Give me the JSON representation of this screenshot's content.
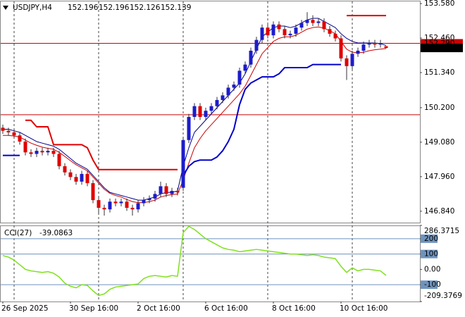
{
  "chart_data": {
    "type": "candlestick",
    "symbol": "USDJPY,H4",
    "up_color": "#1c1ccc",
    "down_color": "#e00000",
    "wick_color": "#333333",
    "grid": true,
    "categories": [
      "26 Sep 2025",
      null,
      null,
      null,
      null,
      null,
      null,
      null,
      null,
      null,
      null,
      null,
      "30 Sep 16:00",
      null,
      null,
      null,
      null,
      null,
      null,
      null,
      null,
      null,
      null,
      null,
      "2 Oct 16:00",
      null,
      null,
      null,
      null,
      null,
      null,
      null,
      null,
      null,
      null,
      null,
      "6 Oct 16:00",
      null,
      null,
      null,
      null,
      null,
      null,
      null,
      null,
      null,
      null,
      null,
      "8 Oct 16:00",
      null,
      null,
      null,
      null,
      null,
      null,
      null,
      null,
      null,
      null,
      null,
      "10 Oct 16:00",
      null,
      null,
      null,
      null,
      null,
      null,
      null,
      null
    ],
    "open": [
      149.55,
      149.45,
      149.4,
      149.3,
      149.1,
      148.75,
      148.7,
      148.8,
      148.75,
      148.8,
      148.7,
      148.3,
      148.1,
      147.95,
      147.8,
      148.05,
      147.75,
      147.2,
      146.95,
      146.9,
      147.15,
      147.1,
      147.15,
      146.95,
      146.9,
      147.1,
      147.2,
      147.25,
      147.4,
      147.65,
      147.4,
      147.5,
      147.6,
      149.15,
      149.9,
      150.25,
      149.9,
      150.1,
      150.25,
      150.45,
      150.6,
      150.85,
      150.95,
      151.4,
      151.6,
      152.05,
      152.4,
      152.8,
      152.55,
      152.9,
      152.75,
      152.55,
      152.6,
      152.8,
      152.95,
      153.05,
      152.95,
      153.0,
      152.75,
      152.6,
      152.45,
      151.8,
      151.55,
      151.95,
      152.05,
      152.25,
      152.3,
      152.25,
      152.196
    ],
    "high": [
      149.65,
      149.55,
      149.5,
      149.4,
      149.2,
      148.85,
      148.9,
      148.9,
      148.9,
      148.9,
      148.8,
      148.4,
      148.2,
      148.05,
      148.15,
      148.15,
      147.85,
      147.3,
      147.05,
      147.25,
      147.25,
      147.25,
      147.25,
      147.05,
      147.2,
      147.3,
      147.35,
      147.5,
      147.8,
      147.75,
      147.6,
      147.6,
      149.25,
      150.0,
      150.35,
      150.35,
      150.2,
      150.35,
      150.55,
      150.7,
      150.95,
      151.05,
      151.5,
      151.7,
      152.15,
      152.5,
      152.9,
      152.9,
      153.0,
      153.0,
      152.85,
      152.7,
      152.9,
      153.05,
      153.3,
      153.2,
      153.1,
      153.1,
      152.85,
      152.7,
      152.55,
      151.9,
      152.05,
      152.15,
      152.35,
      152.4,
      152.4,
      152.4,
      152.196
    ],
    "low": [
      149.35,
      149.3,
      149.2,
      149.0,
      148.65,
      148.6,
      148.6,
      148.65,
      148.65,
      148.6,
      148.2,
      148.0,
      147.85,
      147.7,
      147.7,
      147.65,
      147.1,
      146.75,
      146.7,
      146.8,
      147.0,
      147.0,
      146.85,
      146.7,
      146.8,
      147.0,
      147.1,
      147.15,
      147.3,
      147.3,
      147.3,
      147.35,
      147.5,
      149.05,
      149.8,
      149.8,
      149.8,
      150.0,
      150.15,
      150.35,
      150.5,
      150.75,
      150.85,
      151.3,
      151.5,
      151.95,
      152.3,
      152.45,
      152.45,
      152.65,
      152.45,
      152.45,
      152.5,
      152.7,
      152.85,
      152.85,
      152.85,
      152.65,
      152.5,
      152.35,
      151.7,
      151.1,
      151.45,
      151.85,
      151.95,
      152.15,
      152.15,
      152.15,
      152.126
    ],
    "close": [
      149.45,
      149.4,
      149.3,
      149.1,
      148.75,
      148.7,
      148.8,
      148.75,
      148.8,
      148.7,
      148.3,
      148.1,
      147.95,
      147.8,
      148.05,
      147.75,
      147.2,
      146.95,
      146.9,
      147.15,
      147.1,
      147.15,
      146.95,
      146.9,
      147.1,
      147.2,
      147.25,
      147.4,
      147.65,
      147.4,
      147.5,
      147.45,
      149.15,
      149.9,
      150.25,
      149.9,
      150.1,
      150.25,
      150.45,
      150.6,
      150.85,
      150.95,
      151.4,
      151.6,
      152.05,
      152.4,
      152.8,
      152.55,
      152.9,
      152.75,
      152.55,
      152.6,
      152.8,
      152.95,
      153.05,
      152.95,
      153.0,
      152.75,
      152.6,
      152.45,
      151.8,
      151.55,
      151.95,
      152.05,
      152.25,
      152.3,
      152.25,
      152.3,
      152.139
    ],
    "series": [
      {
        "color": "#00008b",
        "values": [
          149.5,
          149.5,
          149.45,
          149.4,
          149.3,
          149.2,
          149.1,
          149.05,
          149.0,
          148.95,
          148.85,
          148.7,
          148.55,
          148.4,
          148.3,
          148.2,
          148.0,
          147.8,
          147.6,
          147.45,
          147.4,
          147.35,
          147.3,
          147.25,
          147.2,
          147.2,
          147.25,
          147.3,
          147.4,
          147.45,
          147.45,
          147.5,
          148.3,
          148.9,
          149.4,
          149.6,
          149.8,
          150.0,
          150.2,
          150.4,
          150.6,
          150.8,
          151.0,
          151.3,
          151.7,
          152.1,
          152.5,
          152.65,
          152.8,
          152.85,
          152.85,
          152.8,
          152.85,
          152.95,
          153.05,
          153.1,
          153.1,
          153.0,
          152.9,
          152.8,
          152.6,
          152.45,
          152.35,
          152.3,
          152.3,
          152.3,
          152.3,
          152.28,
          152.22
        ]
      },
      {
        "color": "#cc0000",
        "values": [
          149.3,
          149.3,
          149.28,
          149.25,
          149.15,
          149.05,
          148.98,
          148.92,
          148.88,
          148.85,
          148.75,
          148.62,
          148.48,
          148.35,
          148.25,
          148.15,
          147.95,
          147.75,
          147.55,
          147.42,
          147.35,
          147.3,
          147.22,
          147.15,
          147.12,
          147.12,
          147.15,
          147.2,
          147.3,
          147.35,
          147.38,
          147.4,
          147.85,
          148.4,
          148.9,
          149.2,
          149.45,
          149.65,
          149.85,
          150.05,
          150.25,
          150.45,
          150.65,
          150.9,
          151.25,
          151.6,
          151.95,
          152.15,
          152.35,
          152.45,
          152.5,
          152.5,
          152.55,
          152.65,
          152.75,
          152.8,
          152.82,
          152.78,
          152.7,
          152.6,
          152.35,
          152.1,
          152.0,
          151.98,
          152.0,
          152.05,
          152.08,
          152.1,
          152.12
        ]
      },
      {
        "color": "#e00000",
        "values": [
          null,
          null,
          null,
          null,
          149.79,
          149.79,
          149.58,
          149.58,
          149.58,
          149.0,
          149.0,
          149.0,
          149.0,
          149.0,
          149.0,
          148.9,
          148.5,
          148.19,
          148.19,
          148.19,
          148.19,
          148.19,
          148.19,
          148.19,
          148.19,
          148.19,
          148.19,
          148.19,
          148.19,
          148.19,
          148.19,
          148.19,
          null,
          null,
          null,
          null,
          null,
          null,
          null,
          null,
          null,
          null,
          null,
          null,
          null,
          null,
          null,
          null,
          null,
          null,
          null,
          null,
          null,
          null,
          null,
          null,
          null,
          null,
          null,
          null,
          null,
          153.19,
          153.19,
          153.19,
          153.19,
          153.19,
          153.19,
          153.19,
          153.19
        ]
      },
      {
        "color": "#0000cc",
        "values": [
          148.65,
          148.65,
          148.65,
          148.65,
          null,
          null,
          null,
          null,
          null,
          null,
          null,
          null,
          null,
          null,
          null,
          null,
          null,
          null,
          null,
          null,
          null,
          null,
          null,
          null,
          null,
          null,
          null,
          null,
          null,
          null,
          null,
          null,
          148.0,
          148.3,
          148.45,
          148.5,
          148.5,
          148.5,
          148.6,
          148.8,
          149.1,
          149.5,
          150.3,
          150.8,
          151.0,
          151.1,
          151.2,
          151.2,
          151.2,
          151.3,
          151.5,
          151.5,
          151.5,
          151.5,
          151.5,
          151.6,
          151.6,
          151.6,
          151.6,
          151.6,
          151.6,
          null,
          null,
          null,
          null,
          null,
          null,
          null,
          null
        ]
      }
    ],
    "hlines": [
      {
        "value": 152.29,
        "label": "152.290",
        "color": "#cc0000"
      },
      {
        "value": 149.97,
        "color": "#cc0000"
      }
    ],
    "ylim": [
      146.47,
      153.65
    ],
    "yticks": [
      {
        "value": 153.58,
        "label": "153.580"
      },
      {
        "value": 152.46,
        "label": "152.460"
      },
      {
        "value": 151.34,
        "label": "151.340"
      },
      {
        "value": 150.2,
        "label": "150.200"
      },
      {
        "value": 149.08,
        "label": "149.080"
      },
      {
        "value": 147.96,
        "label": "147.960"
      },
      {
        "value": 146.84,
        "label": "146.840"
      }
    ],
    "cci": {
      "name": "CCI(27)",
      "color": "#80e020",
      "level_color": "#6f93bd",
      "values": [
        90,
        80,
        60,
        30,
        0,
        -10,
        -15,
        -20,
        -15,
        -25,
        -50,
        -90,
        -110,
        -120,
        -100,
        -105,
        -140,
        -170,
        -160,
        -130,
        -115,
        -110,
        -105,
        -100,
        -95,
        -60,
        -45,
        -40,
        -45,
        -50,
        -40,
        -45,
        240,
        280,
        260,
        230,
        200,
        180,
        160,
        140,
        130,
        125,
        115,
        120,
        125,
        130,
        125,
        120,
        115,
        110,
        105,
        100,
        100,
        95,
        90,
        95,
        90,
        80,
        75,
        70,
        20,
        -20,
        10,
        -10,
        0,
        0,
        -5,
        -10,
        -39.0863
      ],
      "ylim": [
        -209.3769,
        286.3715
      ],
      "yticks": [
        286.3715,
        200,
        100,
        {
          "value": 0,
          "label": "0.00"
        },
        -100,
        -209.3769
      ],
      "levels": [
        200,
        100,
        -100
      ]
    }
  }
}
